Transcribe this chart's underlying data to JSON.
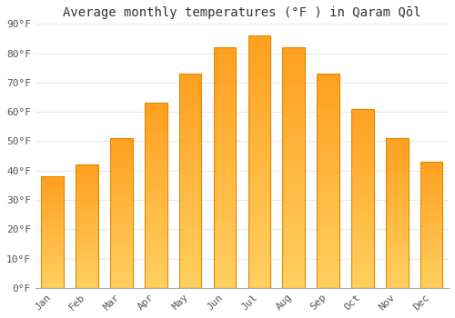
{
  "title": "Average monthly temperatures (°F ) in Qaram Qōl",
  "months": [
    "Jan",
    "Feb",
    "Mar",
    "Apr",
    "May",
    "Jun",
    "Jul",
    "Aug",
    "Sep",
    "Oct",
    "Nov",
    "Dec"
  ],
  "values": [
    38,
    42,
    51,
    63,
    73,
    82,
    86,
    82,
    73,
    61,
    51,
    43
  ],
  "bar_color_bottom": "#FFD060",
  "bar_color_top": "#FFA020",
  "bar_edge_color": "#E08800",
  "ylim": [
    0,
    90
  ],
  "yticks": [
    0,
    10,
    20,
    30,
    40,
    50,
    60,
    70,
    80,
    90
  ],
  "ytick_labels": [
    "0°F",
    "10°F",
    "20°F",
    "30°F",
    "40°F",
    "50°F",
    "60°F",
    "70°F",
    "80°F",
    "90°F"
  ],
  "background_color": "#ffffff",
  "grid_color": "#e8e8e8",
  "title_fontsize": 10,
  "tick_fontsize": 8,
  "bar_width": 0.65,
  "n_gradient_steps": 80
}
